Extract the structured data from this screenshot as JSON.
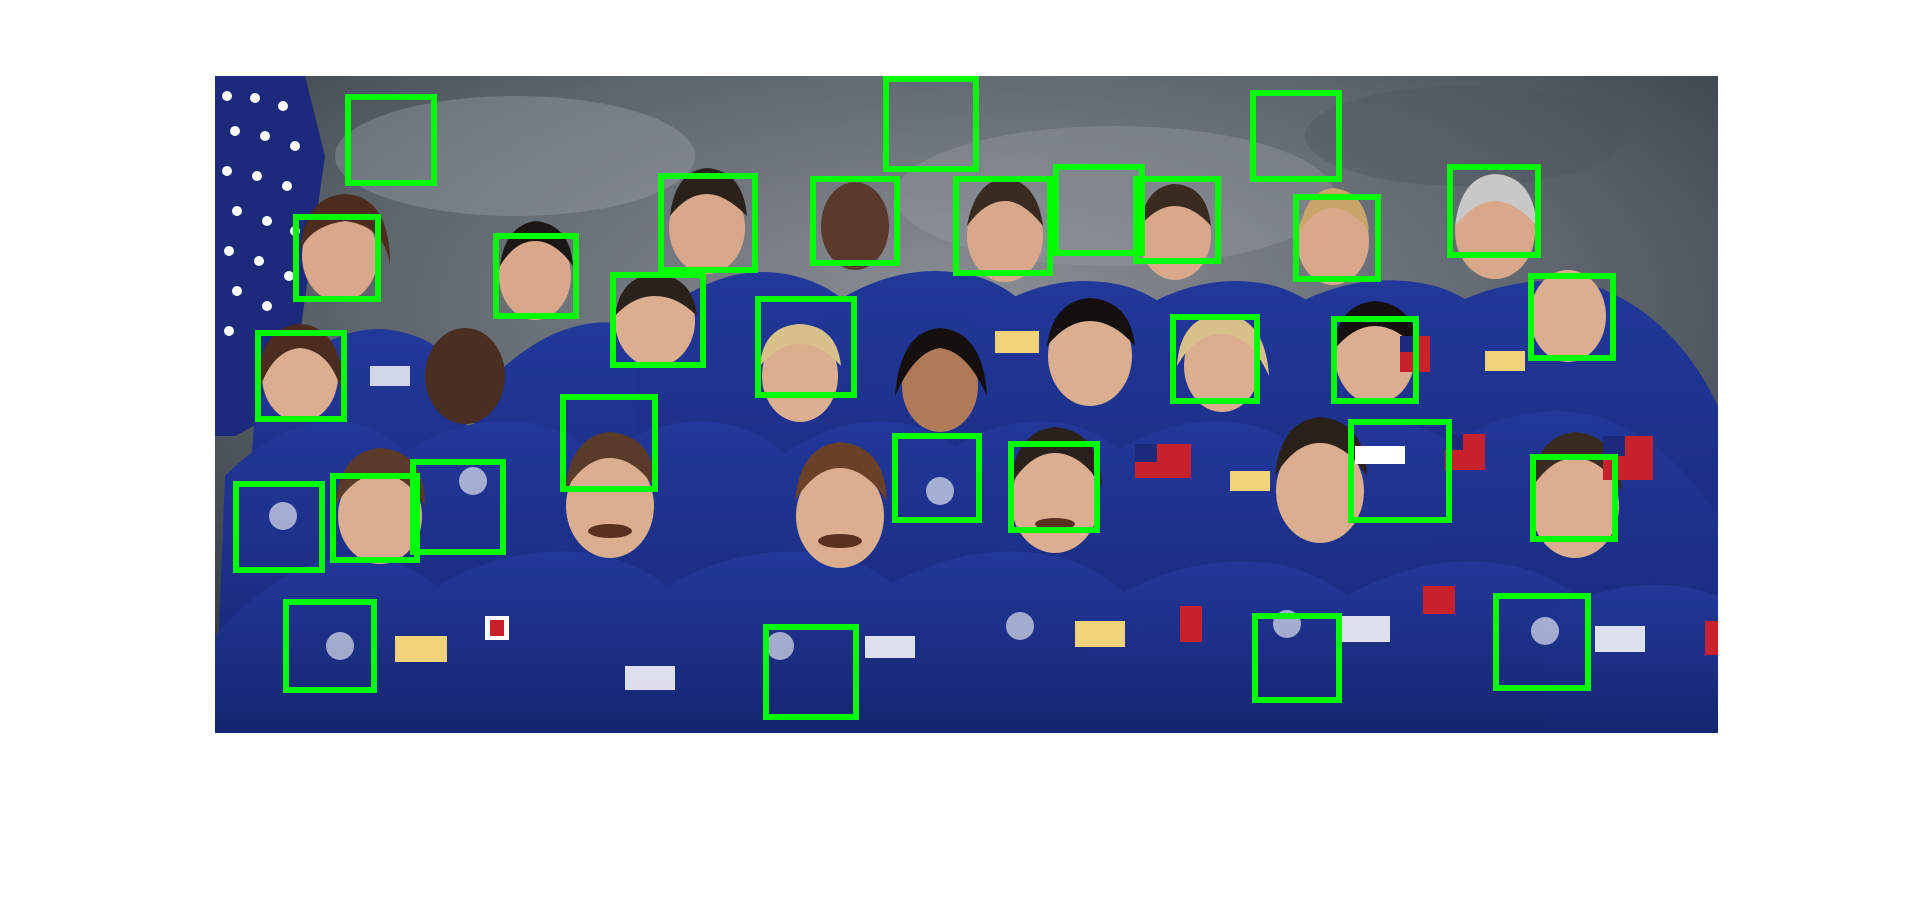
{
  "colors": {
    "detection_box": "#00ff00",
    "background": "#ffffff",
    "jumpsuit": "#1b2f86",
    "flag_blue": "#1b2a7a",
    "flag_red": "#c8212b"
  },
  "detections": {
    "count": 34
  }
}
